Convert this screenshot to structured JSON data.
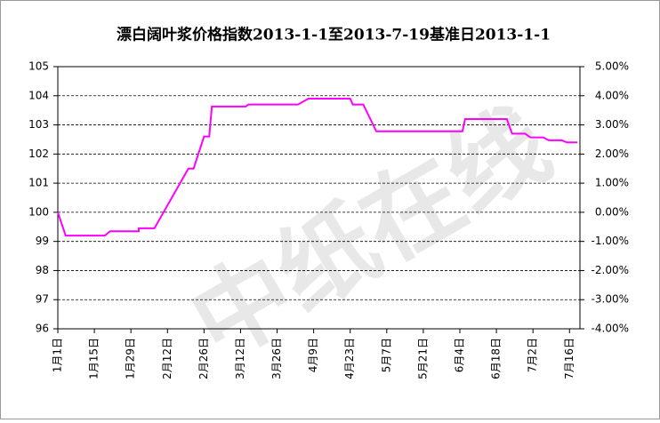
{
  "chart_data": {
    "type": "line",
    "title": "漂白阔叶浆价格指数2013-1-1至2013-7-19基准日2013-1-1",
    "watermark": "中纸在线",
    "x": [
      0,
      3,
      18,
      20,
      31,
      31,
      37,
      50,
      52,
      56,
      58,
      59,
      72,
      73,
      92,
      96,
      112,
      113,
      117,
      122,
      155,
      156,
      172,
      174,
      179,
      181,
      186,
      188,
      193,
      195,
      199
    ],
    "values": [
      100,
      99.2,
      99.2,
      99.35,
      99.35,
      99.45,
      99.45,
      101.5,
      101.5,
      102.6,
      102.6,
      103.63,
      103.63,
      103.7,
      103.7,
      103.9,
      103.9,
      103.7,
      103.7,
      102.78,
      102.78,
      103.2,
      103.2,
      102.7,
      102.7,
      102.57,
      102.57,
      102.47,
      102.47,
      102.4,
      102.4
    ],
    "color": "#ff00ff",
    "xlim": [
      0,
      200
    ],
    "xticks": [
      {
        "value": 0,
        "label": "1月1日"
      },
      {
        "value": 14,
        "label": "1月15日"
      },
      {
        "value": 28,
        "label": "1月29日"
      },
      {
        "value": 42,
        "label": "2月12日"
      },
      {
        "value": 56,
        "label": "2月26日"
      },
      {
        "value": 70,
        "label": "3月12日"
      },
      {
        "value": 84,
        "label": "3月26日"
      },
      {
        "value": 98,
        "label": "4月9日"
      },
      {
        "value": 112,
        "label": "4月23日"
      },
      {
        "value": 126,
        "label": "5月7日"
      },
      {
        "value": 140,
        "label": "5月21日"
      },
      {
        "value": 154,
        "label": "6月4日"
      },
      {
        "value": 168,
        "label": "6月18日"
      },
      {
        "value": 182,
        "label": "7月2日"
      },
      {
        "value": 196,
        "label": "7月16日"
      }
    ],
    "ylim": [
      96,
      105
    ],
    "yticks": [
      96,
      97,
      98,
      99,
      100,
      101,
      102,
      103,
      104,
      105
    ],
    "y2lim": [
      -4,
      5
    ],
    "y2ticks": [
      {
        "value": -4,
        "label": "-4.00%"
      },
      {
        "value": -3,
        "label": "-3.00%"
      },
      {
        "value": -2,
        "label": "-2.00%"
      },
      {
        "value": -1,
        "label": "-1.00%"
      },
      {
        "value": 0,
        "label": "0.00%"
      },
      {
        "value": 1,
        "label": "1.00%"
      },
      {
        "value": 2,
        "label": "2.00%"
      },
      {
        "value": 3,
        "label": "3.00%"
      },
      {
        "value": 4,
        "label": "4.00%"
      },
      {
        "value": 5,
        "label": "5.00%"
      }
    ],
    "grid": true
  }
}
